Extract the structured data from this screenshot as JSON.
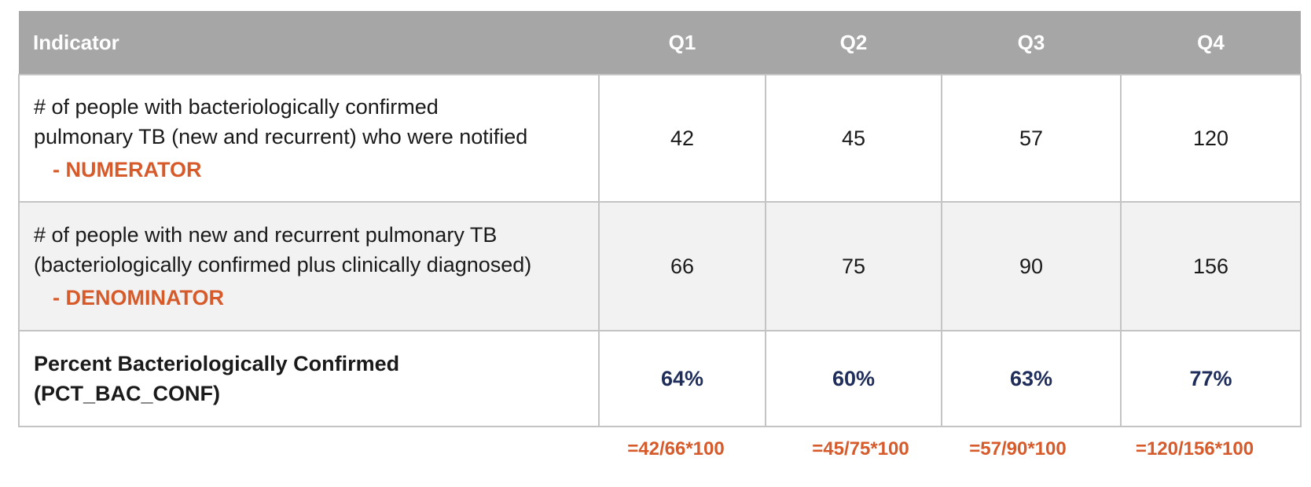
{
  "table": {
    "headers": {
      "indicator": "Indicator",
      "quarters": [
        "Q1",
        "Q2",
        "Q3",
        "Q4"
      ]
    },
    "rows": [
      {
        "lines": [
          "# of people with bacteriologically confirmed",
          "pulmonary TB (new and recurrent) who were notified"
        ],
        "role_dash": "- ",
        "role": "NUMERATOR",
        "values": [
          "42",
          "45",
          "57",
          "120"
        ]
      },
      {
        "lines": [
          "# of people with new and recurrent pulmonary TB",
          "(bacteriologically confirmed plus clinically diagnosed)"
        ],
        "role_dash": "- ",
        "role": "DENOMINATOR",
        "values": [
          "66",
          "75",
          "90",
          "156"
        ]
      }
    ],
    "percent_row": {
      "lines": [
        "Percent Bacteriologically Confirmed",
        "(PCT_BAC_CONF)"
      ],
      "values": [
        "64%",
        "60%",
        "63%",
        "77%"
      ]
    }
  },
  "formulas": [
    "=42/66*100",
    "=45/75*100",
    "=57/90*100",
    "=120/156*100"
  ],
  "colors": {
    "header_bg": "#a6a6a6",
    "accent_orange": "#d65a2a",
    "percent_navy": "#1f2d5a",
    "alt_row_bg": "#f2f2f2"
  }
}
